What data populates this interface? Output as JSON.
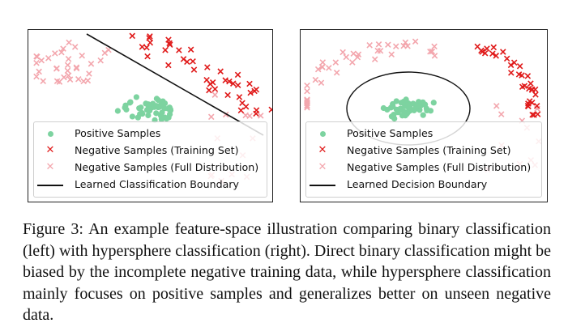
{
  "colors": {
    "positive": "#7dd3a0",
    "negative_train": "#e01a1a",
    "negative_full": "#f3a6ad",
    "boundary": "#111111"
  },
  "panels": [
    {
      "id": "left",
      "legend": [
        {
          "marker": "positive-dot",
          "label": "Positive Samples"
        },
        {
          "marker": "negative-train-x",
          "label": "Negative Samples (Training Set)"
        },
        {
          "marker": "negative-full-x",
          "label": "Negative Samples (Full Distribution)"
        },
        {
          "marker": "boundary-line",
          "label": "Learned Classification Boundary"
        }
      ]
    },
    {
      "id": "right",
      "legend": [
        {
          "marker": "positive-dot",
          "label": "Positive Samples"
        },
        {
          "marker": "negative-train-x",
          "label": "Negative Samples (Training Set)"
        },
        {
          "marker": "negative-full-x",
          "label": "Negative Samples (Full Distribution)"
        },
        {
          "marker": "boundary-line",
          "label": "Learned Decision Boundary"
        }
      ]
    }
  ],
  "caption": "Figure 3: An example feature-space illustration comparing binary classification (left) with hypersphere classification (right). Direct binary classification might be biased by the incomplete negative training data, while hypersphere classification mainly focuses on positive samples and generalizes better on unseen negative data."
}
